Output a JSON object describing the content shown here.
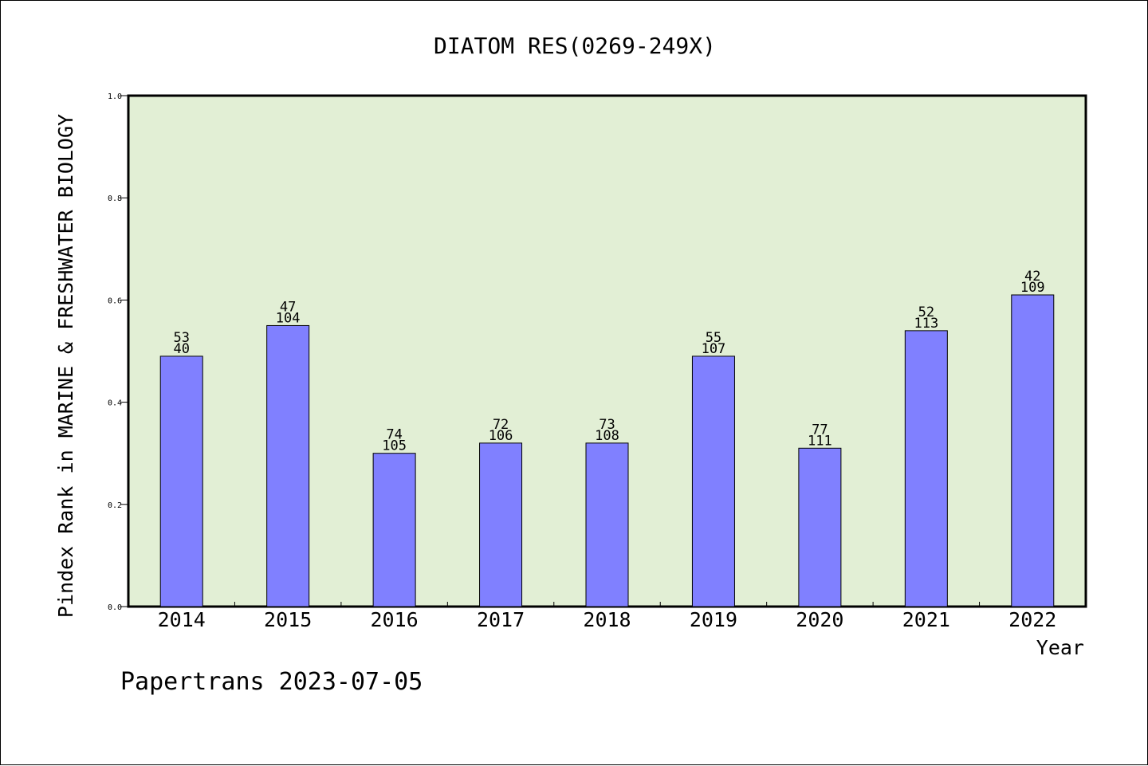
{
  "colors": {
    "plot_background": "#e2efd5",
    "bar_fill": "#8080ff",
    "bar_stroke": "#000000",
    "frame": "#000000"
  },
  "footer": {
    "text": "Papertrans 2023-07-05"
  },
  "chart_data": {
    "type": "bar",
    "title": "DIATOM RES(0269-249X)",
    "xlabel": "Year",
    "ylabel": "Pindex Rank in MARINE & FRESHWATER BIOLOGY",
    "ylim": [
      0,
      1.0
    ],
    "yticks": [
      "0.0",
      "0.2",
      "0.4",
      "0.6",
      "0.8",
      "1.0"
    ],
    "categories": [
      "2014",
      "2015",
      "2016",
      "2017",
      "2018",
      "2019",
      "2020",
      "2021",
      "2022"
    ],
    "values": [
      0.49,
      0.55,
      0.3,
      0.32,
      0.32,
      0.49,
      0.31,
      0.54,
      0.61
    ],
    "rank_labels": [
      "53",
      "47",
      "74",
      "72",
      "73",
      "55",
      "77",
      "52",
      "42"
    ],
    "total_labels": [
      "40",
      "104",
      "105",
      "106",
      "108",
      "107",
      "111",
      "113",
      "109"
    ],
    "grid": false,
    "legend": "none"
  }
}
